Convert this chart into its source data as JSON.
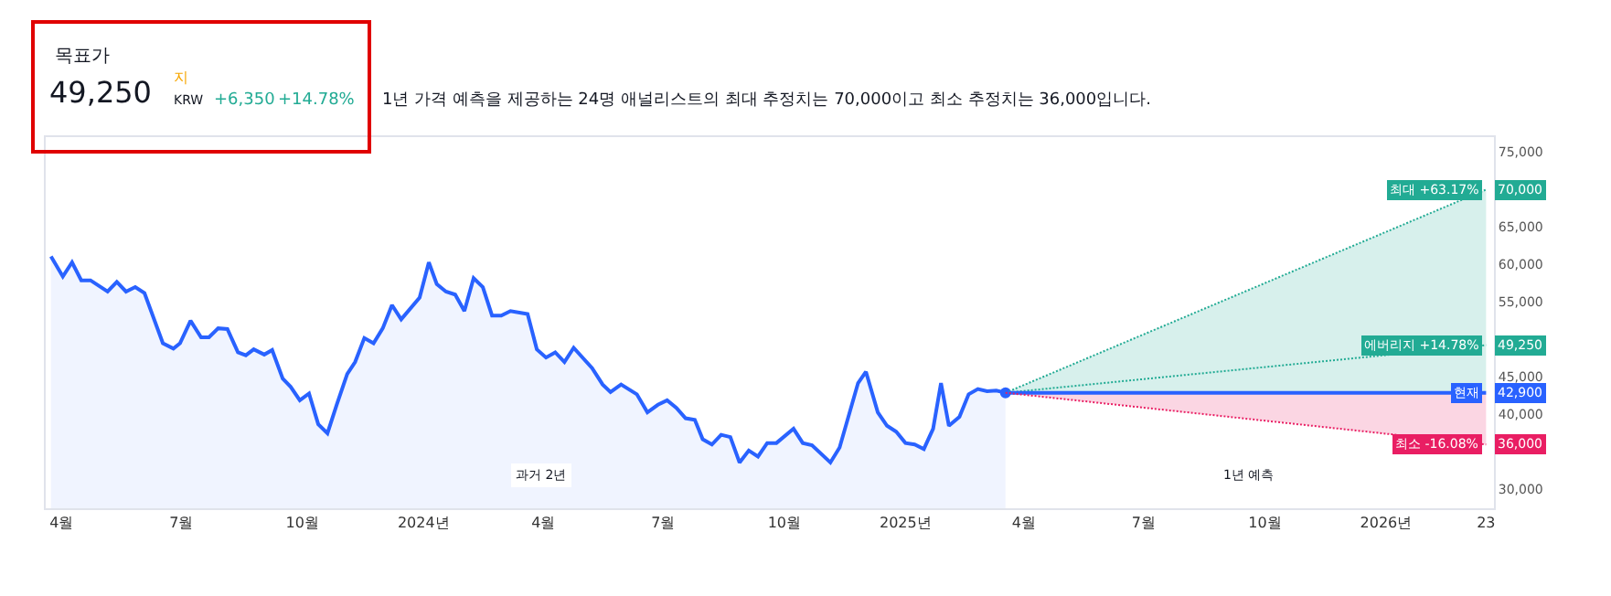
{
  "chart_data": {
    "type": "line",
    "title": "목표가",
    "annotations": [
      "49,250",
      "지",
      "KRW",
      "+6,350",
      "+14.78%",
      "1년 가격 예측을 제공하는 24명 애널리스트의 최대 추정치는 70,000이고 최소 추정치는 36,000입니다.",
      "과거 2년",
      "1년 예측"
    ],
    "series": [
      {
        "type": "area",
        "color": "#2962ff",
        "x": [
          "2023-03-24",
          "2023-04-02",
          "2023-04-09",
          "2023-04-16",
          "2023-04-23",
          "2023-05-06",
          "2023-05-13",
          "2023-05-20",
          "2023-05-27",
          "2023-06-03",
          "2023-06-17",
          "2023-06-25",
          "2023-06-30",
          "2023-07-08",
          "2023-07-16",
          "2023-07-22",
          "2023-07-29",
          "2023-08-05",
          "2023-08-13",
          "2023-08-19",
          "2023-08-25",
          "2023-09-02",
          "2023-09-08",
          "2023-09-16",
          "2023-09-22",
          "2023-09-29",
          "2023-10-06",
          "2023-10-13",
          "2023-10-20",
          "2023-10-27",
          "2023-11-04",
          "2023-11-10",
          "2023-11-17",
          "2023-11-24",
          "2023-12-01",
          "2023-12-08",
          "2023-12-15",
          "2023-12-29",
          "2024-01-05",
          "2024-01-11",
          "2024-01-18",
          "2024-01-25",
          "2024-02-01",
          "2024-02-08",
          "2024-02-15",
          "2024-02-22",
          "2024-02-29",
          "2024-03-07",
          "2024-03-20",
          "2024-03-27",
          "2024-04-03",
          "2024-04-10",
          "2024-04-17",
          "2024-04-24",
          "2024-05-08",
          "2024-05-16",
          "2024-05-22",
          "2024-05-30",
          "2024-06-11",
          "2024-06-19",
          "2024-06-27",
          "2024-07-04",
          "2024-07-11",
          "2024-07-18",
          "2024-07-25",
          "2024-07-31",
          "2024-08-07",
          "2024-08-14",
          "2024-08-21",
          "2024-08-28",
          "2024-09-04",
          "2024-09-11",
          "2024-09-18",
          "2024-09-25",
          "2024-10-08",
          "2024-10-15",
          "2024-10-22",
          "2024-11-05",
          "2024-11-12",
          "2024-11-26",
          "2024-12-02",
          "2024-12-11",
          "2024-12-18",
          "2024-12-25",
          "2025-01-01",
          "2025-01-08",
          "2025-01-15",
          "2025-01-22",
          "2025-01-28",
          "2025-02-03",
          "2025-02-11",
          "2025-02-18",
          "2025-02-25",
          "2025-03-04",
          "2025-03-11",
          "2025-03-18"
        ],
        "values": [
          61100,
          58400,
          60300,
          57900,
          57900,
          56400,
          57700,
          56400,
          57000,
          56200,
          49500,
          48800,
          49500,
          52500,
          50300,
          50300,
          51500,
          51400,
          48300,
          47900,
          48700,
          48000,
          48600,
          44800,
          43700,
          41900,
          42800,
          38700,
          37500,
          41300,
          45400,
          47000,
          50200,
          49500,
          51500,
          54600,
          52700,
          55600,
          60300,
          57400,
          56400,
          56000,
          53800,
          58200,
          57000,
          53200,
          53200,
          53800,
          53400,
          48700,
          47600,
          48300,
          47000,
          48900,
          46200,
          44000,
          43000,
          44000,
          42700,
          40300,
          41300,
          41900,
          40900,
          39500,
          39300,
          36700,
          36000,
          37300,
          37000,
          33600,
          35200,
          34400,
          36200,
          36200,
          38100,
          36200,
          35900,
          33600,
          35600,
          44200,
          45700,
          40300,
          38500,
          37700,
          36200,
          36000,
          35400,
          38100,
          44200,
          38500,
          39700,
          42700,
          43400,
          43100,
          43200,
          42900
        ]
      },
      {
        "name": "최대 +63.17%",
        "color": "#22ab94",
        "line_style": "dotted",
        "x": [
          "2025-03-18",
          "2026-03-18"
        ],
        "values": [
          42900,
          70000
        ],
        "value_labels": [
          null,
          "70,000"
        ]
      },
      {
        "name": "에버리지 +14.78%",
        "color": "#22ab94",
        "line_style": "dotted",
        "x": [
          "2025-03-18",
          "2026-03-18"
        ],
        "values": [
          42900,
          49250
        ],
        "value_labels": [
          null,
          "49,250"
        ]
      },
      {
        "name": "현재",
        "color": "#2962ff",
        "line_style": "solid",
        "x": [
          "2025-03-18",
          "2026-03-18"
        ],
        "values": [
          42900,
          42900
        ],
        "value_labels": [
          null,
          "42,900"
        ]
      },
      {
        "name": "최소 -16.08%",
        "color": "#e91e63",
        "line_style": "dotted",
        "x": [
          "2025-03-18",
          "2026-03-18"
        ],
        "values": [
          42900,
          36000
        ],
        "value_labels": [
          null,
          "36,000"
        ]
      }
    ],
    "xlim": [
      "2023-03-20",
      "2026-03-24"
    ],
    "xticks": [
      {
        "value": "2023-04-01",
        "label": "4월"
      },
      {
        "value": "2023-07-01",
        "label": "7월"
      },
      {
        "value": "2023-10-01",
        "label": "10월"
      },
      {
        "value": "2024-01-01",
        "label": "2024년"
      },
      {
        "value": "2024-04-01",
        "label": "4월"
      },
      {
        "value": "2024-07-01",
        "label": "7월"
      },
      {
        "value": "2024-10-01",
        "label": "10월"
      },
      {
        "value": "2025-01-01",
        "label": "2025년"
      },
      {
        "value": "2025-04-01",
        "label": "4월"
      },
      {
        "value": "2025-07-01",
        "label": "7월"
      },
      {
        "value": "2025-10-01",
        "label": "10월"
      },
      {
        "value": "2026-01-01",
        "label": "2026년"
      },
      {
        "value": "2026-03-18",
        "label": "23"
      }
    ],
    "ylim": [
      27500,
      77000
    ],
    "yticks": [
      {
        "value": 30000,
        "label": "30,000"
      },
      {
        "value": 40000,
        "label": "40,000"
      },
      {
        "value": 45000,
        "label": "45,000"
      },
      {
        "value": 55000,
        "label": "55,000"
      },
      {
        "value": 60000,
        "label": "60,000"
      },
      {
        "value": 65000,
        "label": "65,000"
      },
      {
        "value": 75000,
        "label": "75,000"
      }
    ],
    "legend": "right",
    "marker": "none"
  }
}
